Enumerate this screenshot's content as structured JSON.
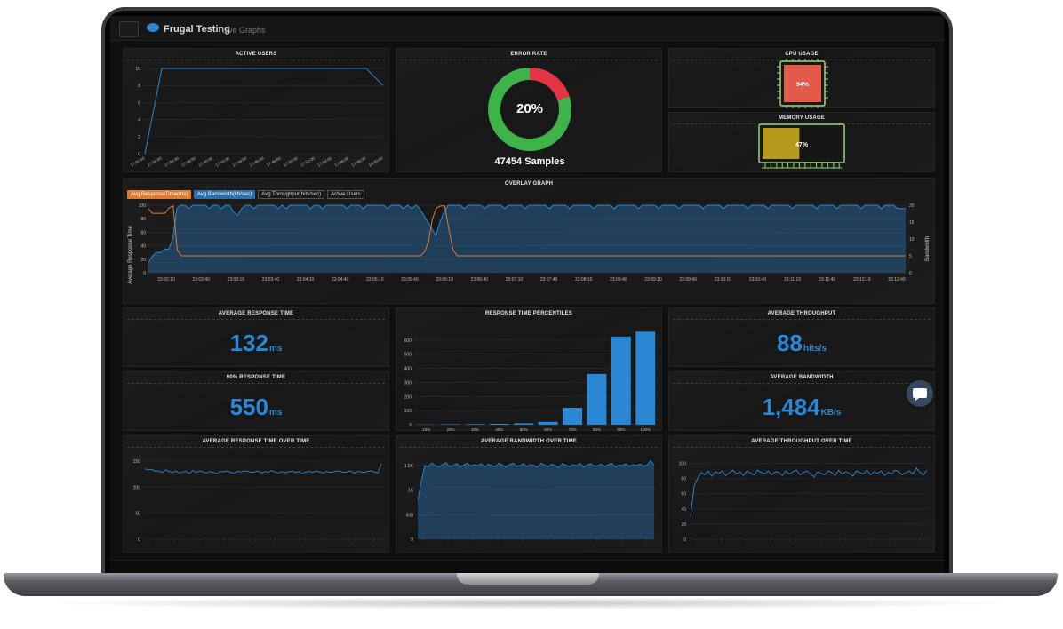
{
  "app": {
    "brand": "Frugal Testing",
    "subtitle": "Live Graphs"
  },
  "colors": {
    "accent": "#2a87d4",
    "error": "#e53345",
    "ok": "#3db34a",
    "cpu": "#e35a4a",
    "memory": "#b59b1c",
    "orange": "#e07a2e",
    "chip": "#9bd77a"
  },
  "panels": {
    "active_users": {
      "title": "ACTIVE USERS"
    },
    "error_rate": {
      "title": "ERROR RATE",
      "percent": 20,
      "percent_label": "20%",
      "samples_label": "47454 Samples"
    },
    "cpu_usage": {
      "title": "CPU USAGE",
      "value": 94,
      "value_label": "94%"
    },
    "memory_usage": {
      "title": "MEMORY USAGE",
      "value": 47,
      "value_label": "47%"
    },
    "overlay": {
      "title": "OVERLAY GRAPH",
      "y_left_label": "Average Response Time",
      "y_right_label": "Bandwidth",
      "legend": [
        "Avg ResponseTime(ms)",
        "Avg Bandwidth(kb/sec)",
        "Avg Throughput(hits/sec)",
        "Active Users"
      ]
    },
    "avg_response_time": {
      "title": "AVERAGE RESPONSE TIME",
      "value": "132",
      "unit": "ms"
    },
    "p90_response_time": {
      "title": "90% RESPONSE TIME",
      "value": "550",
      "unit": "ms"
    },
    "percentiles": {
      "title": "RESPONSE TIME PERCENTILES"
    },
    "avg_throughput": {
      "title": "AVERAGE THROUGHPUT",
      "value": "88",
      "unit": "hits/s"
    },
    "avg_bandwidth": {
      "title": "AVERAGE BANDWIDTH",
      "value": "1,484",
      "unit": "KB/s"
    },
    "rt_over_time": {
      "title": "AVERAGE RESPONSE TIME OVER TIME"
    },
    "bw_over_time": {
      "title": "AVERAGE BANDWIDTH OVER TIME"
    },
    "tp_over_time": {
      "title": "AVERAGE THROUGHPUT OVER TIME"
    }
  },
  "chart_data": [
    {
      "id": "active_users",
      "type": "line",
      "x": [
        "17:32:00",
        "17:34:00",
        "17:36:00",
        "17:38:00",
        "17:40:00",
        "17:42:00",
        "17:44:00",
        "17:46:00",
        "17:48:00",
        "17:50:00",
        "17:52:00",
        "17:54:00",
        "17:56:00",
        "17:58:00",
        "18:00:00"
      ],
      "series": [
        {
          "values": [
            0,
            10,
            10,
            10,
            10,
            10,
            10,
            10,
            10,
            10,
            10,
            10,
            10,
            10,
            8
          ]
        }
      ],
      "yticks": [
        0,
        2,
        4,
        6,
        8,
        10
      ],
      "ylim": [
        0,
        10
      ],
      "xtick_labels": [
        "17:32:00",
        "17:34:00",
        "17:36:00",
        "17:38:00",
        "17:40:00",
        "17:42:00",
        "17:44:00",
        "17:46:00",
        "17:48:00",
        "17:50:00",
        "17:52:00",
        "17:54:00",
        "17:56:00",
        "17:58:00",
        "18:00:00"
      ]
    },
    {
      "id": "error_rate",
      "type": "pie",
      "slices": [
        {
          "label": "Error",
          "value": 20
        },
        {
          "label": "Success",
          "value": 80
        }
      ]
    },
    {
      "id": "overlay",
      "type": "area",
      "xtick_labels": [
        "23:02:10",
        "23:02:40",
        "23:03:10",
        "23:03:40",
        "23:04:10",
        "23:04:40",
        "23:05:10",
        "23:05:40",
        "23:06:10",
        "23:06:40",
        "23:07:10",
        "23:07:40",
        "23:08:10",
        "23:08:40",
        "23:09:10",
        "23:09:40",
        "23:10:10",
        "23:10:40",
        "23:11:10",
        "23:11:40",
        "23:12:10",
        "23:12:40"
      ],
      "yticks_left": [
        0,
        20,
        40,
        60,
        80,
        100
      ],
      "yticks_right": [
        0,
        5,
        10,
        15,
        20
      ],
      "series": [
        {
          "name": "Avg ResponseTime(ms)",
          "values": [
            95,
            88,
            88,
            88,
            88,
            96,
            99,
            34,
            25,
            25,
            25,
            25,
            25,
            25,
            25,
            25,
            25,
            25,
            25,
            25,
            25,
            25,
            25,
            25,
            25,
            25,
            25,
            25,
            25,
            25,
            25,
            25,
            25,
            25,
            25,
            25,
            25,
            25,
            25,
            25,
            25,
            25,
            25,
            25,
            25,
            25,
            25,
            25,
            25,
            25,
            25,
            25,
            25,
            25,
            25,
            25,
            25,
            25,
            25,
            25,
            25,
            25,
            25,
            25,
            25,
            25,
            25,
            30,
            45,
            80,
            96,
            99,
            99,
            64,
            34,
            25,
            25,
            25,
            25,
            25,
            25,
            25,
            25,
            25,
            25,
            25,
            25,
            25,
            25,
            25,
            25,
            25,
            25,
            25,
            25,
            25,
            25,
            25,
            25,
            25,
            25,
            25,
            25,
            25,
            25,
            25,
            25,
            25,
            25,
            25,
            25,
            25,
            25,
            25,
            25,
            25,
            25,
            25,
            25,
            25,
            25,
            25,
            25,
            25,
            25,
            25,
            25,
            25,
            25,
            25,
            25,
            25,
            25,
            25,
            25,
            25,
            25,
            25,
            25,
            25,
            25,
            25,
            25,
            25,
            25,
            25,
            25,
            25,
            25,
            25,
            25,
            25,
            25,
            25,
            25,
            25,
            25,
            25,
            25,
            25,
            25,
            25,
            25,
            25,
            25,
            25,
            25,
            25,
            25,
            25,
            25,
            25,
            25,
            25,
            25,
            25,
            25,
            25,
            25,
            25,
            25,
            25,
            25,
            25,
            25
          ]
        },
        {
          "name": "Avg Bandwidth(kb/sec)",
          "values": [
            3,
            5,
            6,
            6,
            7,
            7,
            10,
            19,
            20,
            20,
            19,
            20,
            20,
            20,
            20,
            19,
            20,
            20,
            19,
            20,
            20,
            18,
            17,
            19,
            20,
            20,
            19,
            20,
            20,
            20,
            20,
            20,
            19,
            20,
            19,
            20,
            20,
            20,
            20,
            20,
            19,
            20,
            20,
            19,
            20,
            20,
            20,
            20,
            20,
            19,
            20,
            20,
            20,
            19,
            20,
            20,
            20,
            20,
            20,
            19,
            20,
            20,
            20,
            19,
            20,
            19,
            20,
            19,
            17,
            15,
            13,
            11,
            15,
            18,
            20,
            20,
            20,
            20,
            19,
            20,
            20,
            20,
            20,
            19,
            20,
            20,
            20,
            20,
            19,
            20,
            20,
            20,
            20,
            19,
            20,
            20,
            20,
            20,
            20,
            19,
            20,
            20,
            20,
            20,
            19,
            20,
            20,
            20,
            20,
            20,
            19,
            20,
            20,
            20,
            20,
            19,
            20,
            20,
            20,
            20,
            20,
            19,
            20,
            20,
            20,
            20,
            19,
            20,
            20,
            20,
            20,
            19,
            20,
            20,
            20,
            20,
            20,
            19,
            20,
            20,
            20,
            20,
            19,
            20,
            20,
            20,
            20,
            20,
            19,
            20,
            20,
            20,
            20,
            19,
            20,
            20,
            20,
            20,
            20,
            19,
            20,
            20,
            20,
            20,
            20,
            19,
            20,
            20,
            20,
            20,
            19,
            20,
            20,
            20,
            20,
            20,
            19,
            20,
            20,
            20,
            20,
            19,
            20,
            20,
            20,
            19,
            19,
            19
          ]
        }
      ]
    },
    {
      "id": "percentiles",
      "type": "bar",
      "categories": [
        "10%",
        "20%",
        "30%",
        "40%",
        "50%",
        "60%",
        "70%",
        "80%",
        "90%",
        "100%"
      ],
      "values": [
        2,
        3,
        4,
        6,
        10,
        20,
        120,
        360,
        625,
        660
      ],
      "yticks": [
        0,
        100,
        200,
        300,
        400,
        500,
        600
      ],
      "ylim": [
        0,
        700
      ]
    },
    {
      "id": "rt_over_time",
      "type": "line",
      "yticks": [
        0,
        50,
        100,
        150
      ],
      "ylim": [
        0,
        160
      ],
      "series": [
        {
          "values": [
            135,
            133,
            134,
            130,
            131,
            128,
            133,
            130,
            128,
            131,
            127,
            129,
            130,
            126,
            132,
            128,
            131,
            129,
            127,
            130,
            128,
            126,
            130,
            129,
            131,
            128,
            127,
            130,
            129,
            131,
            130,
            128,
            129,
            131,
            127,
            130,
            128,
            132,
            129,
            127,
            130,
            128,
            129,
            131,
            128,
            130,
            126,
            129,
            130,
            128,
            131,
            129,
            127,
            130,
            128,
            129,
            131,
            130,
            128,
            129,
            131,
            127,
            130,
            129,
            128,
            130,
            131,
            129,
            127,
            145
          ]
        }
      ]
    },
    {
      "id": "bw_over_time",
      "type": "area",
      "yticks": [
        0,
        500,
        1000,
        1500
      ],
      "ytick_labels": [
        "0",
        "500",
        "1K",
        "1.5K"
      ],
      "ylim": [
        0,
        1700
      ],
      "series": [
        {
          "values": [
            800,
            1180,
            1500,
            1480,
            1550,
            1500,
            1470,
            1520,
            1560,
            1480,
            1500,
            1540,
            1470,
            1510,
            1550,
            1490,
            1520,
            1500,
            1540,
            1470,
            1530,
            1500,
            1480,
            1550,
            1510,
            1470,
            1520,
            1550,
            1490,
            1500,
            1540,
            1480,
            1520,
            1500,
            1470,
            1550,
            1510,
            1480,
            1530,
            1500,
            1460,
            1540,
            1510,
            1480,
            1520,
            1500,
            1550,
            1470,
            1510,
            1540,
            1490,
            1500,
            1530,
            1480,
            1520,
            1550,
            1470,
            1510,
            1500,
            1540,
            1480,
            1520,
            1500,
            1530,
            1490,
            1510,
            1600,
            1520
          ]
        }
      ]
    },
    {
      "id": "tp_over_time",
      "type": "line",
      "yticks": [
        0,
        20,
        40,
        60,
        80,
        100
      ],
      "ylim": [
        0,
        110
      ],
      "series": [
        {
          "values": [
            30,
            70,
            80,
            88,
            85,
            90,
            83,
            89,
            87,
            90,
            84,
            88,
            91,
            86,
            89,
            84,
            90,
            87,
            85,
            91,
            88,
            86,
            90,
            85,
            89,
            88,
            84,
            90,
            86,
            89,
            91,
            85,
            88,
            90,
            86,
            82,
            89,
            87,
            85,
            90,
            88,
            84,
            91,
            86,
            89,
            87,
            83,
            90,
            88,
            86,
            91,
            85,
            89,
            87,
            90,
            84,
            88,
            86,
            91,
            89,
            85,
            88,
            90,
            86,
            94,
            88,
            85,
            91
          ]
        }
      ]
    }
  ]
}
